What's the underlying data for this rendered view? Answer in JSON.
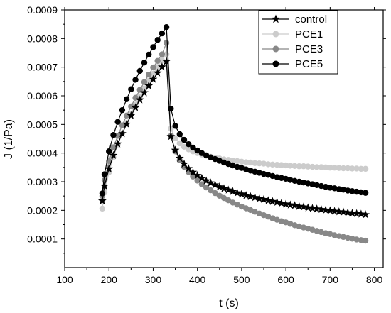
{
  "chart_data": {
    "type": "line",
    "title": "",
    "xlabel": "t (s)",
    "ylabel": "J (1/Pa)",
    "xlim": [
      100,
      820
    ],
    "ylim": [
      0,
      0.0009
    ],
    "x_ticks": [
      100,
      200,
      300,
      400,
      500,
      600,
      700,
      800
    ],
    "y_ticks": [
      0.0001,
      0.0002,
      0.0003,
      0.0004,
      0.0005,
      0.0006,
      0.0007,
      0.0008,
      0.0009
    ],
    "y_tick_labels": [
      "0.0001",
      "0.0002",
      "0.0003",
      "0.0004",
      "0.0005",
      "0.0006",
      "0.0007",
      "0.0008",
      "0.0009"
    ],
    "grid": false,
    "legend_position": "top-right",
    "series": [
      {
        "name": "control",
        "color": "#000000",
        "marker": "star",
        "x": [
          185,
          190,
          200,
          210,
          220,
          230,
          240,
          250,
          260,
          270,
          280,
          290,
          300,
          310,
          320,
          330,
          340,
          350,
          360,
          370,
          380,
          390,
          400,
          410,
          420,
          430,
          440,
          450,
          460,
          470,
          480,
          490,
          500,
          510,
          520,
          530,
          540,
          550,
          560,
          570,
          580,
          590,
          600,
          610,
          620,
          630,
          640,
          650,
          660,
          670,
          680,
          690,
          700,
          710,
          720,
          730,
          740,
          750,
          760,
          770,
          780
        ],
        "y": [
          0.000233,
          0.000285,
          0.000345,
          0.000392,
          0.000432,
          0.000468,
          0.000501,
          0.000531,
          0.000559,
          0.000586,
          0.000611,
          0.000635,
          0.000658,
          0.00068,
          0.000701,
          0.00072,
          0.000458,
          0.00041,
          0.000382,
          0.000362,
          0.000346,
          0.000333,
          0.000322,
          0.000312,
          0.000303,
          0.000296,
          0.000289,
          0.000282,
          0.000276,
          0.000271,
          0.000266,
          0.000261,
          0.000257,
          0.000252,
          0.000248,
          0.000245,
          0.000241,
          0.000238,
          0.000234,
          0.000231,
          0.000228,
          0.000225,
          0.000222,
          0.000219,
          0.000217,
          0.000214,
          0.000212,
          0.000209,
          0.000207,
          0.000205,
          0.000203,
          0.000201,
          0.000199,
          0.000197,
          0.000195,
          0.000194,
          0.000192,
          0.00019,
          0.000189,
          0.000187,
          0.000185
        ]
      },
      {
        "name": "PCE1",
        "color": "#cccccc",
        "marker": "circle",
        "x": [
          185,
          190,
          200,
          210,
          220,
          230,
          240,
          250,
          260,
          270,
          280,
          290,
          300,
          310,
          320,
          330,
          340,
          350,
          360,
          370,
          380,
          390,
          400,
          410,
          420,
          430,
          440,
          450,
          460,
          470,
          480,
          490,
          500,
          510,
          520,
          530,
          540,
          550,
          560,
          570,
          580,
          590,
          600,
          610,
          620,
          630,
          640,
          650,
          660,
          670,
          680,
          690,
          700,
          710,
          720,
          730,
          740,
          750,
          760,
          770,
          780
        ],
        "y": [
          0.000206,
          0.000262,
          0.000333,
          0.000386,
          0.00043,
          0.000469,
          0.000505,
          0.000538,
          0.000569,
          0.000598,
          0.000626,
          0.000652,
          0.000677,
          0.000701,
          0.000724,
          0.000745,
          0.000485,
          0.000452,
          0.000434,
          0.000422,
          0.000413,
          0.000406,
          0.0004,
          0.000395,
          0.000391,
          0.000387,
          0.000384,
          0.000381,
          0.000378,
          0.000376,
          0.000374,
          0.000372,
          0.00037,
          0.000368,
          0.000367,
          0.000365,
          0.000364,
          0.000363,
          0.000361,
          0.00036,
          0.000359,
          0.000358,
          0.000357,
          0.000356,
          0.000355,
          0.000354,
          0.000354,
          0.000353,
          0.000352,
          0.000351,
          0.000351,
          0.00035,
          0.000349,
          0.000349,
          0.000348,
          0.000347,
          0.000347,
          0.000346,
          0.000346,
          0.000345,
          0.000345
        ]
      },
      {
        "name": "PCE3",
        "color": "#888888",
        "marker": "circle",
        "x": [
          185,
          190,
          200,
          210,
          220,
          230,
          240,
          250,
          260,
          270,
          280,
          290,
          300,
          310,
          320,
          330,
          340,
          350,
          360,
          370,
          380,
          390,
          400,
          410,
          420,
          430,
          440,
          450,
          460,
          470,
          480,
          490,
          500,
          510,
          520,
          530,
          540,
          550,
          560,
          570,
          580,
          590,
          600,
          610,
          620,
          630,
          640,
          650,
          660,
          670,
          680,
          690,
          700,
          710,
          720,
          730,
          740,
          750,
          760,
          770,
          780
        ],
        "y": [
          0.00025,
          0.000305,
          0.000372,
          0.00042,
          0.00046,
          0.000497,
          0.000531,
          0.000563,
          0.000593,
          0.000621,
          0.000648,
          0.000674,
          0.000699,
          0.000722,
          0.000745,
          0.000785,
          0.00046,
          0.000406,
          0.000375,
          0.000352,
          0.000334,
          0.000318,
          0.000304,
          0.000291,
          0.00028,
          0.00027,
          0.00026,
          0.000251,
          0.000243,
          0.000235,
          0.000227,
          0.00022,
          0.000213,
          0.000207,
          0.000201,
          0.000195,
          0.000189,
          0.000183,
          0.000178,
          0.000172,
          0.000167,
          0.000162,
          0.000158,
          0.000153,
          0.000148,
          0.000144,
          0.00014,
          0.000136,
          0.000132,
          0.000128,
          0.000124,
          0.00012,
          0.000117,
          0.000113,
          0.00011,
          0.000107,
          0.000104,
          0.000101,
          9.8e-05,
          9.6e-05,
          9.4e-05
        ]
      },
      {
        "name": "PCE5",
        "color": "#000000",
        "marker": "circle",
        "x": [
          185,
          190,
          200,
          210,
          220,
          230,
          240,
          250,
          260,
          270,
          280,
          290,
          300,
          310,
          320,
          330,
          340,
          350,
          360,
          370,
          380,
          390,
          400,
          410,
          420,
          430,
          440,
          450,
          460,
          470,
          480,
          490,
          500,
          510,
          520,
          530,
          540,
          550,
          560,
          570,
          580,
          590,
          600,
          610,
          620,
          630,
          640,
          650,
          660,
          670,
          680,
          690,
          700,
          710,
          720,
          730,
          740,
          750,
          760,
          770,
          780
        ],
        "y": [
          0.000259,
          0.000326,
          0.000406,
          0.000463,
          0.000509,
          0.00055,
          0.000588,
          0.000623,
          0.000656,
          0.000687,
          0.000716,
          0.000744,
          0.00077,
          0.000795,
          0.000818,
          0.00084,
          0.000555,
          0.000495,
          0.000466,
          0.000446,
          0.000431,
          0.000419,
          0.000409,
          0.0004,
          0.000392,
          0.000385,
          0.000379,
          0.000373,
          0.000367,
          0.000362,
          0.000357,
          0.000352,
          0.000348,
          0.000343,
          0.000339,
          0.000335,
          0.000331,
          0.000327,
          0.000324,
          0.00032,
          0.000316,
          0.000313,
          0.00031,
          0.000306,
          0.000303,
          0.0003,
          0.000297,
          0.000294,
          0.000291,
          0.000288,
          0.000285,
          0.000282,
          0.000279,
          0.000277,
          0.000274,
          0.000272,
          0.000269,
          0.000267,
          0.000265,
          0.000263,
          0.000261
        ]
      }
    ]
  }
}
